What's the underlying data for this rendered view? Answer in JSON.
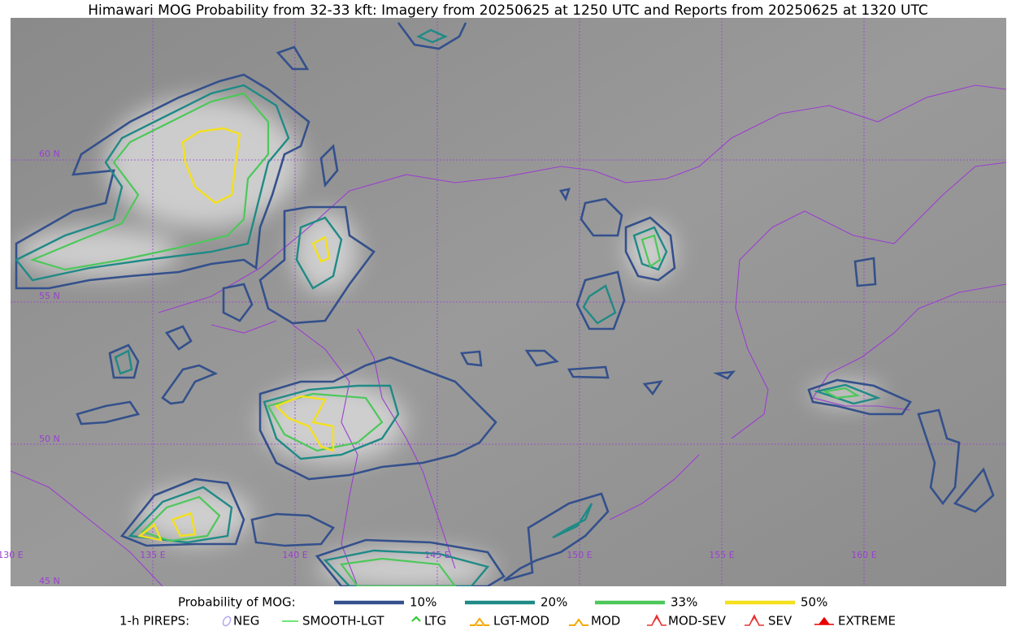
{
  "header": {
    "title": "Himawari MOG Probability from 32-33 kft: Imagery from 20250625 at 1250 UTC and Reports from 20250625 at 1320 UTC"
  },
  "map": {
    "latitude_labels": [
      "60 N",
      "55 N",
      "50 N",
      "45 N"
    ],
    "longitude_labels": [
      "130 E",
      "135 E",
      "140 E",
      "145 E",
      "150 E",
      "155 E",
      "160 E"
    ]
  },
  "legend": {
    "probability": {
      "title": "Probability of MOG:",
      "items": [
        {
          "label": "10%",
          "color": "#34508c"
        },
        {
          "label": "20%",
          "color": "#1f8a86"
        },
        {
          "label": "33%",
          "color": "#4cc85a"
        },
        {
          "label": "50%",
          "color": "#f4e01c"
        }
      ]
    },
    "pireps": {
      "title": "1-h PIREPS:",
      "items": [
        {
          "label": "NEG",
          "color": "#b4a8f0"
        },
        {
          "label": "SMOOTH-LGT",
          "color": "#44dd44"
        },
        {
          "label": "LTG",
          "color": "#22cc22"
        },
        {
          "label": "LGT-MOD",
          "color": "#f5a800"
        },
        {
          "label": "MOD",
          "color": "#f5a800"
        },
        {
          "label": "MOD-SEV",
          "color": "#e83030"
        },
        {
          "label": "SEV",
          "color": "#e83030"
        },
        {
          "label": "EXTREME",
          "color": "#e80000"
        }
      ]
    }
  }
}
